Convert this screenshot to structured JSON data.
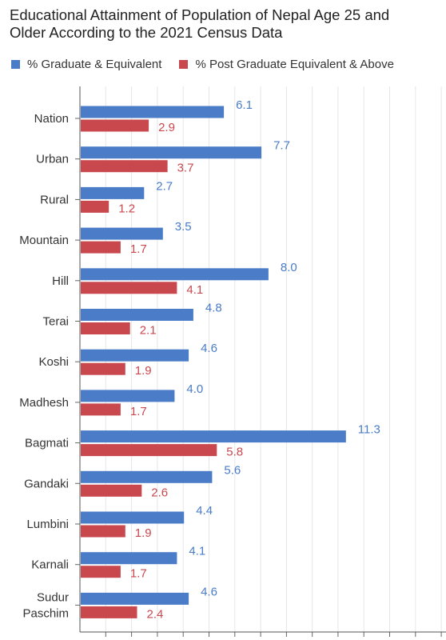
{
  "chart_data": {
    "type": "bar",
    "orientation": "horizontal",
    "title": "Educational Attainment of Population of Nepal Age 25 and Older According to the 2021 Census Data",
    "title_lines": [
      "Educational Attainment of Population of Nepal Age 25 and",
      "Older According to the 2021 Census Data"
    ],
    "categories": [
      "Nation",
      "Urban",
      "Rural",
      "Mountain",
      "Hill",
      "Terai",
      "Koshi",
      "Madhesh",
      "Bagmati",
      "Gandaki",
      "Lumbini",
      "Karnali",
      "Sudur Paschim"
    ],
    "category_lines": [
      [
        "Nation"
      ],
      [
        "Urban"
      ],
      [
        "Rural"
      ],
      [
        "Mountain"
      ],
      [
        "Hill"
      ],
      [
        "Terai"
      ],
      [
        "Koshi"
      ],
      [
        "Madhesh"
      ],
      [
        "Bagmati"
      ],
      [
        "Gandaki"
      ],
      [
        "Lumbini"
      ],
      [
        "Karnali"
      ],
      [
        "Sudur",
        "Paschim"
      ]
    ],
    "series": [
      {
        "name": "% Graduate & Equivalent",
        "color": "#4a7cc7",
        "label_color": "#4a7cc7",
        "values": [
          6.1,
          7.7,
          2.7,
          3.5,
          8.0,
          4.8,
          4.6,
          4.0,
          11.3,
          5.6,
          4.4,
          4.1,
          4.6
        ],
        "labels": [
          "6.1",
          "7.7",
          "2.7",
          "3.5",
          "8.0",
          "4.8",
          "4.6",
          "4.0",
          "11.3",
          "5.6",
          "4.4",
          "4.1",
          "4.6"
        ]
      },
      {
        "name": "% Post Graduate Equivalent & Above",
        "color": "#c9484e",
        "label_color": "#c9484e",
        "values": [
          2.9,
          3.7,
          1.2,
          1.7,
          4.1,
          2.1,
          1.9,
          1.7,
          5.8,
          2.6,
          1.9,
          1.7,
          2.4
        ],
        "labels": [
          "2.9",
          "3.7",
          "1.2",
          "1.7",
          "4.1",
          "2.1",
          "1.9",
          "1.7",
          "5.8",
          "2.6",
          "1.9",
          "1.7",
          "2.4"
        ]
      }
    ],
    "xlim": [
      0,
      15.6
    ],
    "grid": true,
    "legend_position": "top-left"
  }
}
